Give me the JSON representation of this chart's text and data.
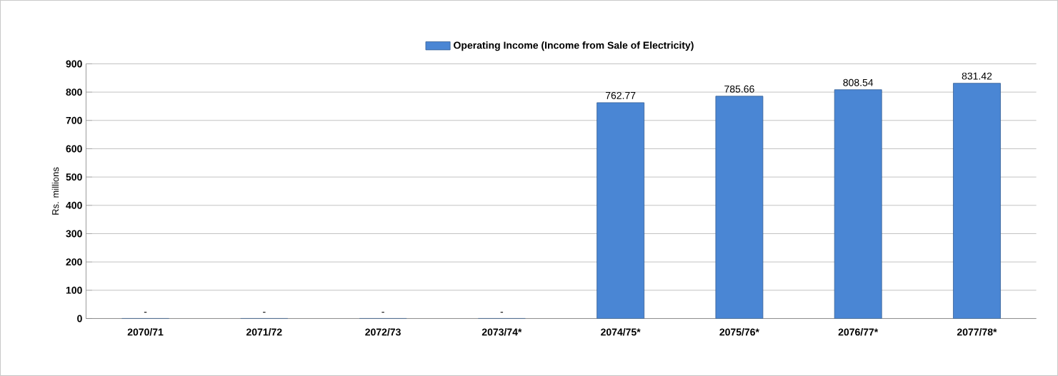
{
  "chart_data": {
    "type": "bar",
    "ylabel": "Rs. millions",
    "categories": [
      "2070/71",
      "2071/72",
      "2072/73",
      "2073/74*",
      "2074/75*",
      "2075/76*",
      "2076/77*",
      "2077/78*"
    ],
    "series": [
      {
        "name": "Operating Income (Income from Sale of Electricity)",
        "color": "#4a86d4",
        "values": [
          0,
          0,
          0,
          0,
          762.77,
          785.66,
          808.54,
          831.42
        ],
        "value_labels": [
          "-",
          "-",
          "-",
          "-",
          "762.77",
          "785.66",
          "808.54",
          "831.42"
        ]
      }
    ],
    "ylim": [
      0,
      900
    ],
    "yticks": [
      0,
      100,
      200,
      300,
      400,
      500,
      600,
      700,
      800,
      900
    ],
    "grid": "y",
    "legend": "top"
  }
}
